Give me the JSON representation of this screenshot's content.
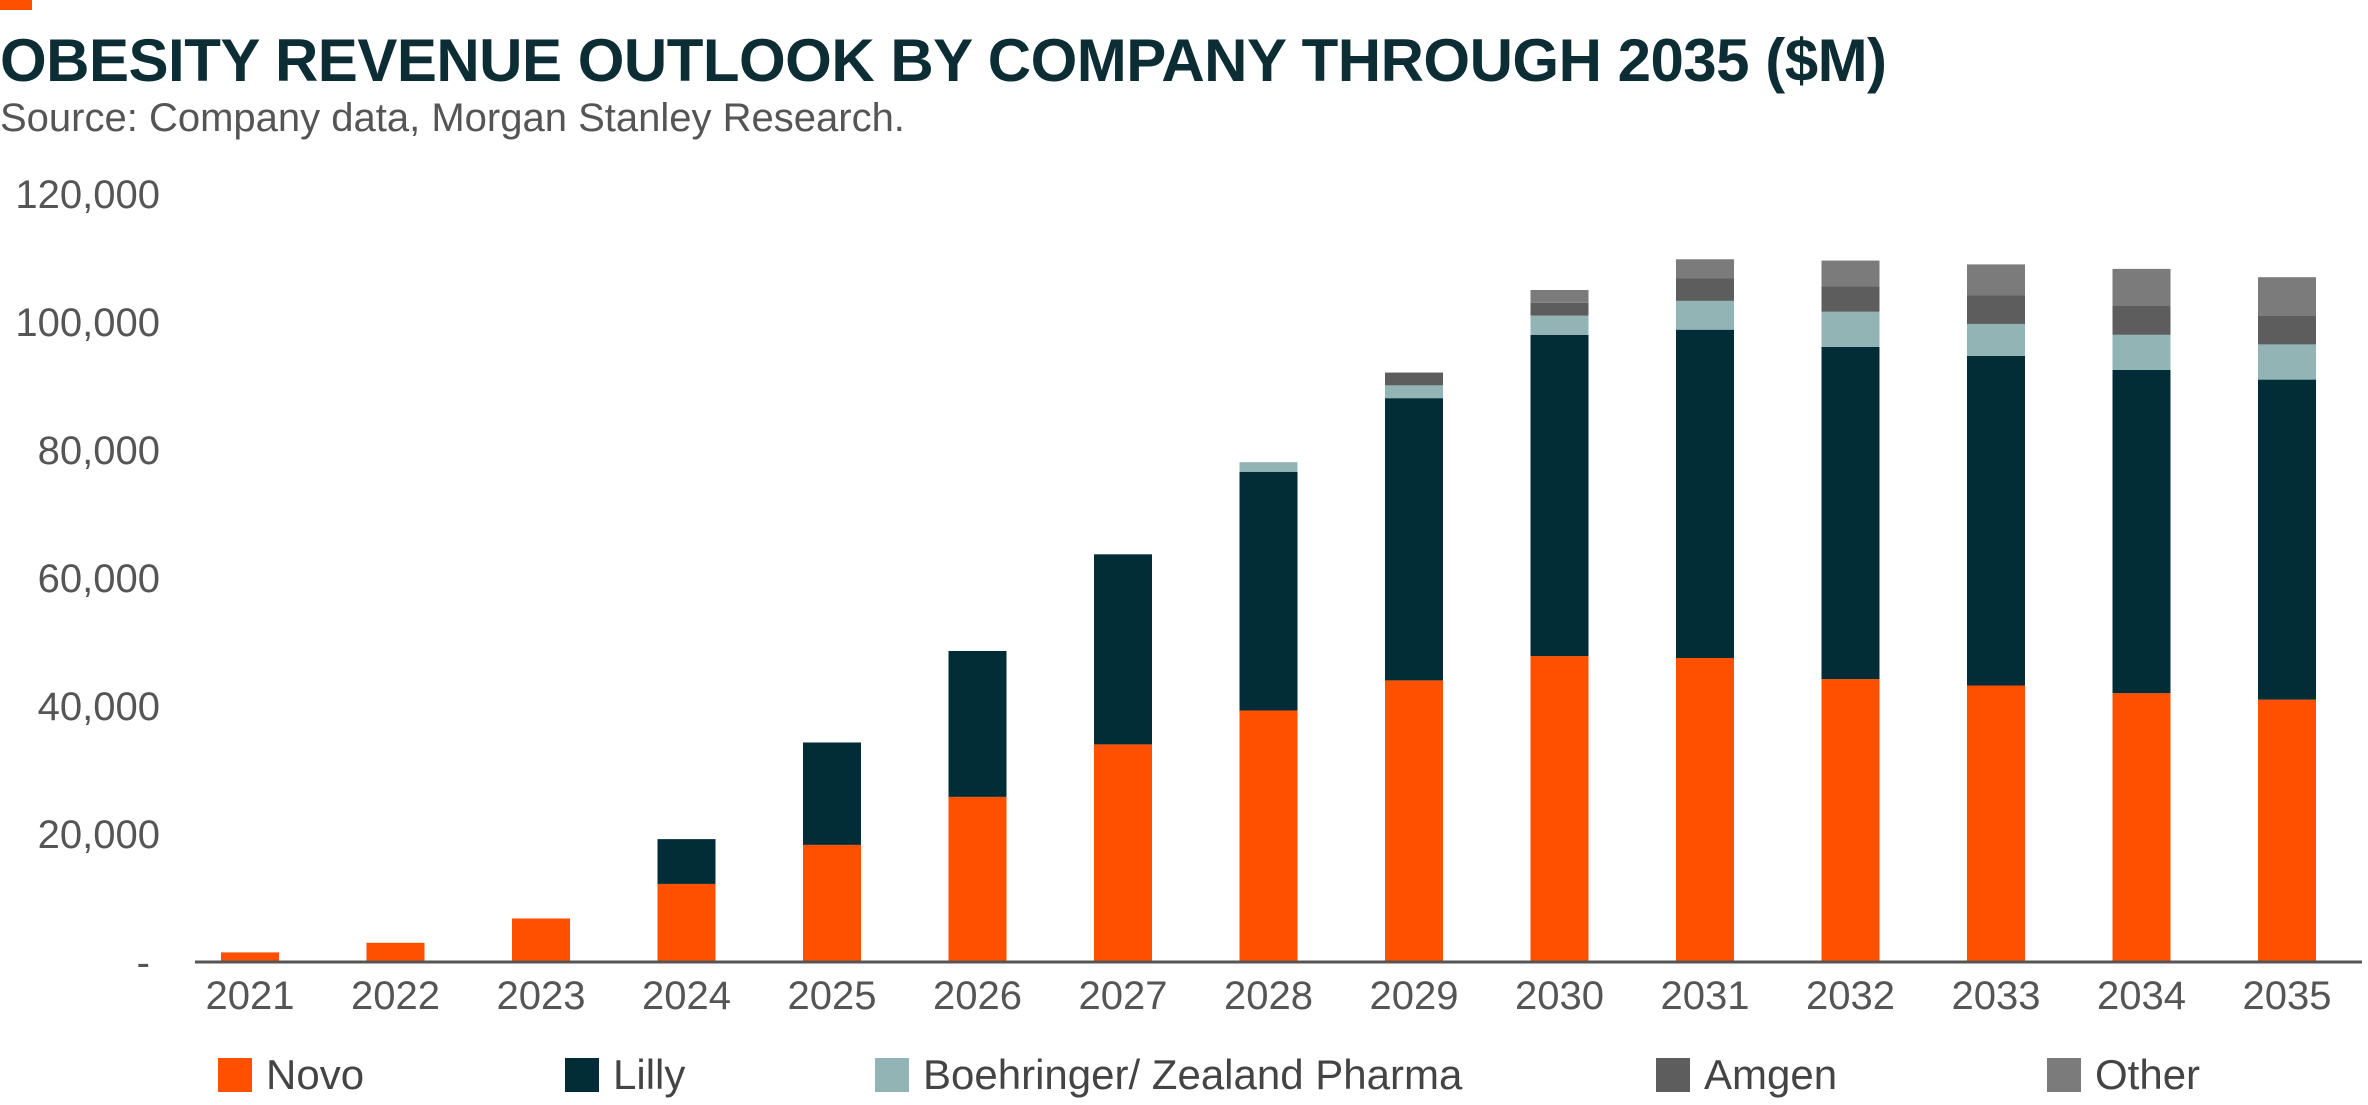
{
  "title": "OBESITY REVENUE OUTLOOK BY COMPANY THROUGH 2035 ($M)",
  "subtitle": "Source: Company data, Morgan Stanley Research.",
  "colors": {
    "accent": "#ff5000",
    "axis": "#555555",
    "tick_text": "#555555"
  },
  "chart_data": {
    "type": "bar",
    "stacked": true,
    "categories": [
      "2021",
      "2022",
      "2023",
      "2024",
      "2025",
      "2026",
      "2027",
      "2028",
      "2029",
      "2030",
      "2031",
      "2032",
      "2033",
      "2034",
      "2035"
    ],
    "ylim": [
      0,
      120000
    ],
    "yticks": [
      0,
      20000,
      40000,
      60000,
      80000,
      100000,
      120000
    ],
    "ytick_labels": [
      "-",
      "20,000",
      "40,000",
      "60,000",
      "80,000",
      "100,000",
      "120,000"
    ],
    "grid": false,
    "legend_position": "bottom",
    "series": [
      {
        "name": "Novo",
        "color": "#ff5000",
        "values": [
          1500,
          3000,
          6800,
          12200,
          18300,
          25800,
          34000,
          39300,
          44000,
          47800,
          47500,
          44200,
          43200,
          42000,
          41000
        ]
      },
      {
        "name": "Lilly",
        "color": "#022d36",
        "values": [
          0,
          0,
          0,
          7000,
          16000,
          22800,
          29700,
          37300,
          44100,
          50200,
          51300,
          51900,
          51500,
          50500,
          50000
        ]
      },
      {
        "name": "Boehringer/ Zealand Pharma",
        "color": "#93b4b4",
        "values": [
          0,
          0,
          0,
          0,
          0,
          0,
          0,
          1500,
          2000,
          3000,
          4500,
          5500,
          5000,
          5500,
          5500
        ]
      },
      {
        "name": "Amgen",
        "color": "#5d5d5d",
        "values": [
          0,
          0,
          0,
          0,
          0,
          0,
          0,
          0,
          2000,
          2000,
          3500,
          4000,
          4500,
          4500,
          4500
        ]
      },
      {
        "name": "Other",
        "color": "#7b7b7b",
        "values": [
          0,
          0,
          0,
          0,
          0,
          0,
          0,
          0,
          0,
          2000,
          3000,
          4000,
          4800,
          5800,
          6000
        ]
      }
    ]
  }
}
